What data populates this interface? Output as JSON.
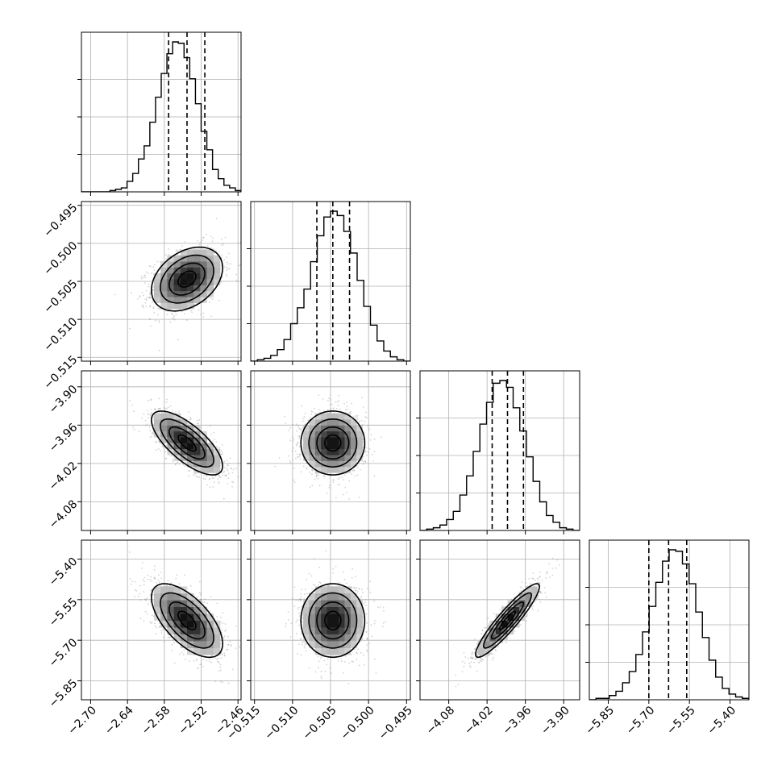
{
  "chart_data": {
    "type": "corner",
    "n_params": 4,
    "labels": [
      "",
      "",
      "",
      ""
    ],
    "quantiles": [
      0.16,
      0.5,
      0.84
    ],
    "params": [
      {
        "range": [
          -2.715,
          -2.455
        ],
        "ticks": [
          -2.7,
          -2.64,
          -2.58,
          -2.52,
          -2.46
        ],
        "tick_labels": [
          "−2.70",
          "−2.64",
          "−2.58",
          "−2.52",
          "−2.46"
        ],
        "quantile_values": [
          -2.573,
          -2.543,
          -2.514
        ],
        "mean": -2.543,
        "sd": 0.029,
        "hist_counts": [
          0,
          0,
          0,
          0,
          0,
          1,
          2,
          3,
          8,
          14,
          25,
          35,
          53,
          72,
          90,
          105,
          114,
          113,
          102,
          86,
          67,
          46,
          32,
          17,
          10,
          5,
          3,
          1
        ]
      },
      {
        "range": [
          -0.5155,
          -0.4945
        ],
        "ticks": [
          -0.515,
          -0.51,
          -0.505,
          -0.5,
          -0.495
        ],
        "tick_labels": [
          "−0.515",
          "−0.510",
          "−0.505",
          "−0.500",
          "−0.495"
        ],
        "quantile_values": [
          -0.5068,
          -0.5047,
          -0.5025
        ],
        "mean": -0.5047,
        "sd": 0.0021,
        "hist_counts": [
          0,
          1,
          2,
          4,
          8,
          15,
          26,
          37,
          50,
          69,
          87,
          100,
          104,
          101,
          90,
          75,
          56,
          38,
          25,
          14,
          7,
          3,
          1,
          0
        ]
      },
      {
        "range": [
          -4.125,
          -3.875
        ],
        "ticks": [
          -4.08,
          -4.02,
          -3.96,
          -3.9
        ],
        "tick_labels": [
          "−4.08",
          "−4.02",
          "−3.96",
          "−3.90"
        ],
        "quantile_values": [
          -4.012,
          -3.988,
          -3.963
        ],
        "mean": -3.988,
        "sd": 0.025,
        "hist_counts": [
          0,
          1,
          2,
          4,
          8,
          14,
          26,
          40,
          58,
          78,
          94,
          108,
          110,
          105,
          90,
          73,
          54,
          36,
          21,
          11,
          6,
          2,
          1,
          0
        ]
      },
      {
        "range": [
          -5.92,
          -5.33
        ],
        "ticks": [
          -5.85,
          -5.7,
          -5.55,
          -5.4
        ],
        "tick_labels": [
          "−5.85",
          "−5.70",
          "−5.55",
          "−5.40"
        ],
        "quantile_values": [
          -5.7,
          -5.627,
          -5.56
        ],
        "mean": -5.627,
        "sd": 0.068,
        "hist_counts": [
          0,
          1,
          1,
          3,
          6,
          12,
          20,
          32,
          48,
          66,
          83,
          98,
          106,
          105,
          96,
          82,
          62,
          44,
          28,
          16,
          8,
          4,
          2,
          1
        ]
      }
    ],
    "correlations": {
      "1-0": 0.35,
      "2-0": -0.72,
      "2-1": 0.0,
      "3-0": -0.63,
      "3-1": 0.0,
      "3-2": 0.92
    },
    "contour_levels_sigma": [
      0.5,
      1.0,
      1.5,
      2.0
    ],
    "grid": true,
    "scatter_color": "#808080",
    "density_color": "#000000"
  }
}
